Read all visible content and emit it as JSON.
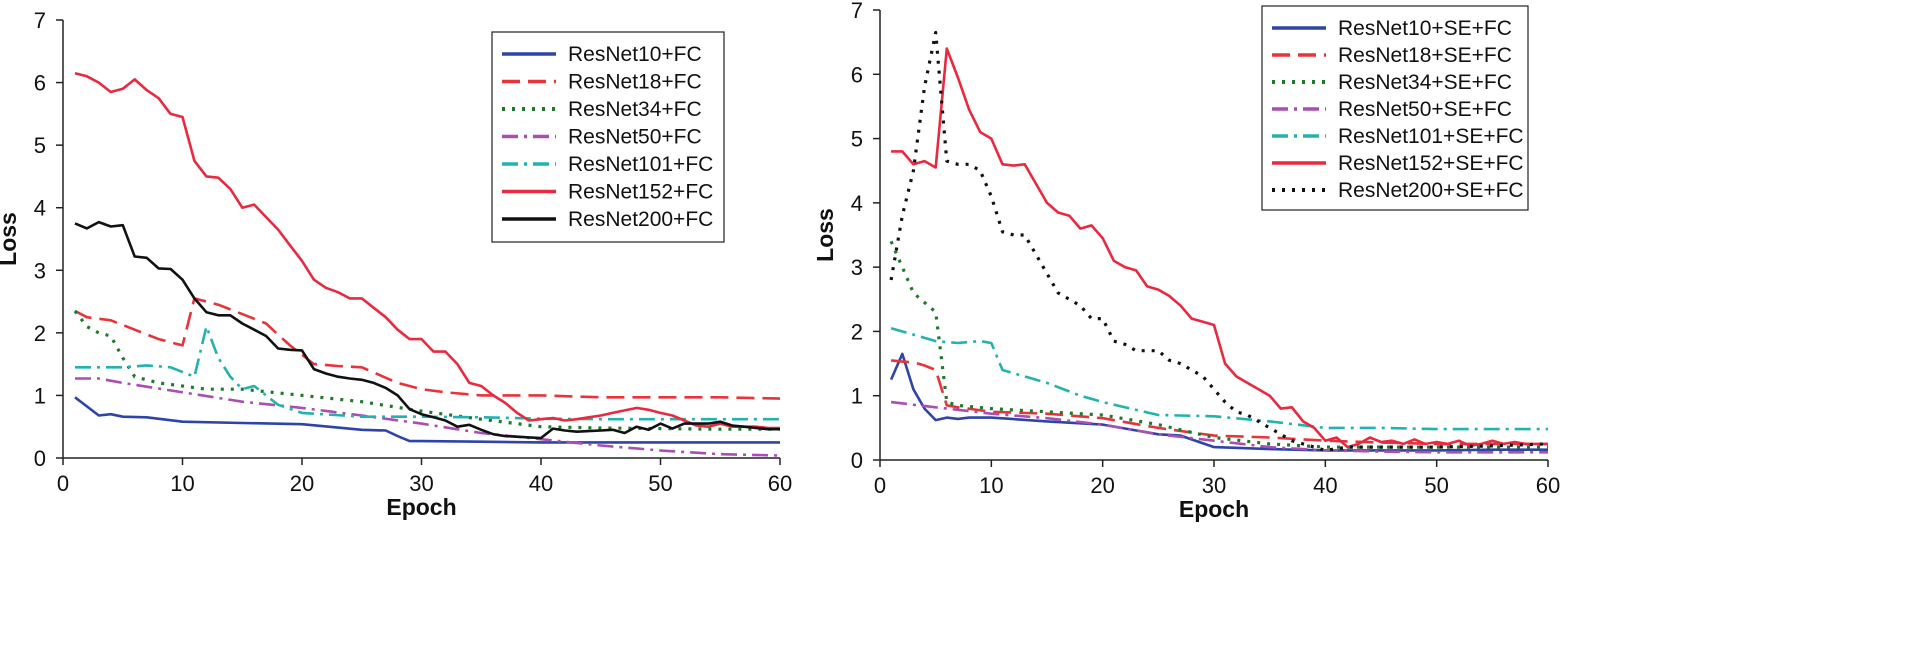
{
  "chart_data": [
    {
      "type": "line",
      "xlabel": "Epoch",
      "ylabel": "Loss",
      "xlim": [
        0,
        60
      ],
      "ylim": [
        0,
        7
      ],
      "xticks": [
        0,
        10,
        20,
        30,
        40,
        50,
        60
      ],
      "yticks": [
        0,
        1,
        2,
        3,
        4,
        5,
        6,
        7
      ],
      "grid": false,
      "legend_position": "top-right",
      "series": [
        {
          "name": "ResNet10+FC",
          "color": "#2e44a8",
          "dash": "solid",
          "x": [
            1,
            3,
            4,
            5,
            7,
            10,
            15,
            20,
            25,
            27,
            28,
            29,
            30,
            35,
            40,
            45,
            50,
            55,
            60
          ],
          "y": [
            0.97,
            0.68,
            0.7,
            0.66,
            0.65,
            0.58,
            0.56,
            0.54,
            0.45,
            0.44,
            0.35,
            0.27,
            0.27,
            0.26,
            0.25,
            0.25,
            0.25,
            0.25,
            0.25
          ]
        },
        {
          "name": "ResNet18+FC",
          "color": "#e8333b",
          "dash": "dash",
          "x": [
            1,
            2,
            4,
            6,
            8,
            10,
            11,
            13,
            15,
            17,
            18,
            19,
            21,
            23,
            25,
            28,
            30,
            32,
            35,
            40,
            45,
            50,
            55,
            60
          ],
          "y": [
            2.35,
            2.25,
            2.2,
            2.05,
            1.9,
            1.8,
            2.55,
            2.45,
            2.3,
            2.15,
            1.97,
            1.8,
            1.5,
            1.47,
            1.45,
            1.2,
            1.1,
            1.05,
            1.0,
            1.0,
            0.97,
            0.97,
            0.97,
            0.95
          ]
        },
        {
          "name": "ResNet34+FC",
          "color": "#1e7a2a",
          "dash": "dot",
          "x": [
            1,
            2,
            3,
            4,
            5,
            6,
            7,
            8,
            10,
            12,
            15,
            20,
            25,
            30,
            35,
            40,
            45,
            50,
            55,
            60
          ],
          "y": [
            2.35,
            2.1,
            2.0,
            1.95,
            1.6,
            1.3,
            1.25,
            1.2,
            1.15,
            1.1,
            1.1,
            1.0,
            0.9,
            0.75,
            0.62,
            0.5,
            0.48,
            0.47,
            0.46,
            0.46
          ]
        },
        {
          "name": "ResNet50+FC",
          "color": "#a94fb4",
          "dash": "dashdot",
          "x": [
            1,
            3,
            5,
            10,
            15,
            20,
            25,
            30,
            35,
            40,
            45,
            50,
            55,
            60
          ],
          "y": [
            1.27,
            1.27,
            1.2,
            1.05,
            0.9,
            0.8,
            0.68,
            0.55,
            0.4,
            0.3,
            0.2,
            0.12,
            0.06,
            0.04
          ]
        },
        {
          "name": "ResNet101+FC",
          "color": "#22b3ae",
          "dash": "dashdot",
          "x": [
            1,
            3,
            5,
            7,
            9,
            11,
            12,
            13,
            14,
            15,
            16,
            17,
            18,
            20,
            25,
            30,
            35,
            40,
            45,
            50,
            55,
            60
          ],
          "y": [
            1.45,
            1.45,
            1.45,
            1.48,
            1.45,
            1.3,
            2.1,
            1.6,
            1.3,
            1.1,
            1.15,
            1.0,
            0.85,
            0.72,
            0.66,
            0.66,
            0.65,
            0.63,
            0.62,
            0.62,
            0.62,
            0.62
          ]
        },
        {
          "name": "ResNet152+FC",
          "color": "#e8293f",
          "dash": "solid",
          "x": [
            1,
            2,
            3,
            4,
            5,
            6,
            7,
            8,
            9,
            10,
            11,
            12,
            13,
            14,
            15,
            16,
            17,
            18,
            19,
            20,
            21,
            22,
            23,
            24,
            25,
            26,
            27,
            28,
            29,
            30,
            31,
            32,
            33,
            34,
            35,
            36,
            37,
            38,
            39,
            40,
            41,
            42,
            43,
            44,
            45,
            46,
            47,
            48,
            49,
            50,
            51,
            52,
            53,
            54,
            55,
            56,
            57,
            58,
            59,
            60
          ],
          "y": [
            6.15,
            6.1,
            6.0,
            5.85,
            5.9,
            6.05,
            5.88,
            5.75,
            5.5,
            5.45,
            4.75,
            4.5,
            4.48,
            4.3,
            4.0,
            4.05,
            3.85,
            3.65,
            3.4,
            3.15,
            2.85,
            2.72,
            2.65,
            2.55,
            2.55,
            2.4,
            2.25,
            2.05,
            1.9,
            1.9,
            1.7,
            1.7,
            1.5,
            1.2,
            1.15,
            1.0,
            0.88,
            0.72,
            0.6,
            0.62,
            0.64,
            0.6,
            0.62,
            0.65,
            0.68,
            0.72,
            0.76,
            0.8,
            0.77,
            0.72,
            0.68,
            0.6,
            0.52,
            0.5,
            0.55,
            0.5,
            0.5,
            0.5,
            0.48,
            0.48
          ]
        },
        {
          "name": "ResNet200+FC",
          "color": "#111111",
          "dash": "solid",
          "x": [
            1,
            2,
            3,
            4,
            5,
            6,
            7,
            8,
            9,
            10,
            11,
            12,
            13,
            14,
            15,
            16,
            17,
            18,
            19,
            20,
            21,
            22,
            23,
            24,
            25,
            26,
            27,
            28,
            29,
            30,
            31,
            32,
            33,
            34,
            35,
            36,
            37,
            38,
            39,
            40,
            41,
            42,
            43,
            44,
            45,
            46,
            47,
            48,
            49,
            50,
            51,
            52,
            53,
            54,
            55,
            56,
            57,
            58,
            59,
            60
          ],
          "y": [
            3.75,
            3.67,
            3.77,
            3.7,
            3.72,
            3.22,
            3.2,
            3.03,
            3.02,
            2.85,
            2.55,
            2.33,
            2.28,
            2.28,
            2.15,
            2.05,
            1.95,
            1.75,
            1.73,
            1.72,
            1.42,
            1.35,
            1.3,
            1.27,
            1.25,
            1.2,
            1.12,
            1.0,
            0.78,
            0.7,
            0.65,
            0.6,
            0.5,
            0.53,
            0.45,
            0.38,
            0.35,
            0.34,
            0.33,
            0.32,
            0.47,
            0.44,
            0.42,
            0.43,
            0.44,
            0.45,
            0.4,
            0.5,
            0.45,
            0.55,
            0.47,
            0.55,
            0.55,
            0.55,
            0.58,
            0.52,
            0.5,
            0.48,
            0.46,
            0.46
          ]
        }
      ]
    },
    {
      "type": "line",
      "xlabel": "Epoch",
      "ylabel": "Loss",
      "xlim": [
        0,
        60
      ],
      "ylim": [
        0,
        7
      ],
      "xticks": [
        0,
        10,
        20,
        30,
        40,
        50,
        60
      ],
      "yticks": [
        0,
        1,
        2,
        3,
        4,
        5,
        6,
        7
      ],
      "grid": false,
      "legend_position": "top-right",
      "series": [
        {
          "name": "ResNet10+SE+FC",
          "color": "#2e44a8",
          "dash": "solid",
          "x": [
            1,
            2,
            3,
            4,
            5,
            6,
            7,
            8,
            10,
            15,
            20,
            25,
            27,
            30,
            35,
            40,
            45,
            50,
            55,
            60
          ],
          "y": [
            1.25,
            1.65,
            1.1,
            0.8,
            0.62,
            0.66,
            0.64,
            0.66,
            0.66,
            0.6,
            0.55,
            0.4,
            0.38,
            0.2,
            0.17,
            0.15,
            0.15,
            0.15,
            0.16,
            0.16
          ]
        },
        {
          "name": "ResNet18+SE+FC",
          "color": "#e8333b",
          "dash": "dash",
          "x": [
            1,
            2,
            3,
            4,
            5,
            6,
            7,
            10,
            15,
            20,
            25,
            30,
            35,
            40,
            45,
            50,
            55,
            60
          ],
          "y": [
            1.55,
            1.53,
            1.52,
            1.47,
            1.4,
            0.85,
            0.82,
            0.75,
            0.72,
            0.65,
            0.5,
            0.38,
            0.35,
            0.3,
            0.27,
            0.25,
            0.25,
            0.25
          ]
        },
        {
          "name": "ResNet34+SE+FC",
          "color": "#1e7a2a",
          "dash": "dot",
          "x": [
            1,
            2,
            3,
            4,
            5,
            6,
            7,
            10,
            15,
            20,
            25,
            30,
            35,
            40,
            45,
            50,
            55,
            60
          ],
          "y": [
            3.4,
            3.0,
            2.6,
            2.45,
            2.3,
            0.9,
            0.85,
            0.8,
            0.75,
            0.7,
            0.55,
            0.35,
            0.25,
            0.2,
            0.2,
            0.2,
            0.2,
            0.2
          ]
        },
        {
          "name": "ResNet50+SE+FC",
          "color": "#a94fb4",
          "dash": "dashdot",
          "x": [
            1,
            5,
            10,
            15,
            20,
            25,
            30,
            35,
            40,
            45,
            50,
            55,
            60
          ],
          "y": [
            0.9,
            0.82,
            0.72,
            0.65,
            0.55,
            0.4,
            0.3,
            0.2,
            0.15,
            0.13,
            0.12,
            0.12,
            0.12
          ]
        },
        {
          "name": "ResNet101+SE+FC",
          "color": "#22b3ae",
          "dash": "dashdot",
          "x": [
            1,
            3,
            5,
            7,
            9,
            10,
            11,
            13,
            15,
            18,
            20,
            25,
            30,
            35,
            40,
            45,
            50,
            55,
            60
          ],
          "y": [
            2.05,
            1.95,
            1.85,
            1.82,
            1.85,
            1.82,
            1.4,
            1.3,
            1.2,
            1.0,
            0.9,
            0.7,
            0.68,
            0.6,
            0.5,
            0.5,
            0.48,
            0.48,
            0.48
          ]
        },
        {
          "name": "ResNet152+SE+FC",
          "color": "#e8293f",
          "dash": "solid",
          "x": [
            1,
            2,
            3,
            4,
            5,
            6,
            7,
            8,
            9,
            10,
            11,
            12,
            13,
            14,
            15,
            16,
            17,
            18,
            19,
            20,
            21,
            22,
            23,
            24,
            25,
            26,
            27,
            28,
            29,
            30,
            31,
            32,
            33,
            34,
            35,
            36,
            37,
            38,
            39,
            40,
            41,
            42,
            43,
            44,
            45,
            46,
            47,
            48,
            49,
            50,
            51,
            52,
            53,
            54,
            55,
            56,
            57,
            58,
            59,
            60
          ],
          "y": [
            4.8,
            4.8,
            4.6,
            4.65,
            4.55,
            6.4,
            5.95,
            5.45,
            5.1,
            5.0,
            4.6,
            4.58,
            4.6,
            4.3,
            4.0,
            3.85,
            3.8,
            3.6,
            3.65,
            3.45,
            3.1,
            3.0,
            2.95,
            2.7,
            2.65,
            2.55,
            2.4,
            2.2,
            2.15,
            2.1,
            1.5,
            1.3,
            1.2,
            1.1,
            1.0,
            0.8,
            0.82,
            0.6,
            0.5,
            0.3,
            0.35,
            0.2,
            0.25,
            0.35,
            0.28,
            0.3,
            0.25,
            0.32,
            0.25,
            0.28,
            0.25,
            0.3,
            0.22,
            0.25,
            0.3,
            0.25,
            0.28,
            0.25,
            0.25,
            0.25
          ]
        },
        {
          "name": "ResNet200+SE+FC",
          "color": "#111111",
          "dash": "dot",
          "x": [
            1,
            2,
            3,
            4,
            5,
            6,
            7,
            8,
            9,
            10,
            11,
            12,
            13,
            14,
            15,
            16,
            17,
            18,
            19,
            20,
            21,
            22,
            23,
            24,
            25,
            26,
            27,
            28,
            29,
            30,
            31,
            32,
            33,
            34,
            35,
            36,
            37,
            38,
            39,
            40,
            42,
            45,
            50,
            55,
            60
          ],
          "y": [
            2.8,
            3.8,
            4.5,
            5.8,
            6.65,
            4.65,
            4.6,
            4.6,
            4.5,
            4.1,
            3.55,
            3.5,
            3.5,
            3.2,
            2.9,
            2.6,
            2.5,
            2.4,
            2.2,
            2.2,
            1.85,
            1.8,
            1.7,
            1.7,
            1.7,
            1.55,
            1.5,
            1.4,
            1.3,
            1.1,
            0.9,
            0.75,
            0.7,
            0.6,
            0.5,
            0.4,
            0.3,
            0.25,
            0.2,
            0.15,
            0.2,
            0.2,
            0.2,
            0.22,
            0.25
          ]
        }
      ]
    }
  ]
}
